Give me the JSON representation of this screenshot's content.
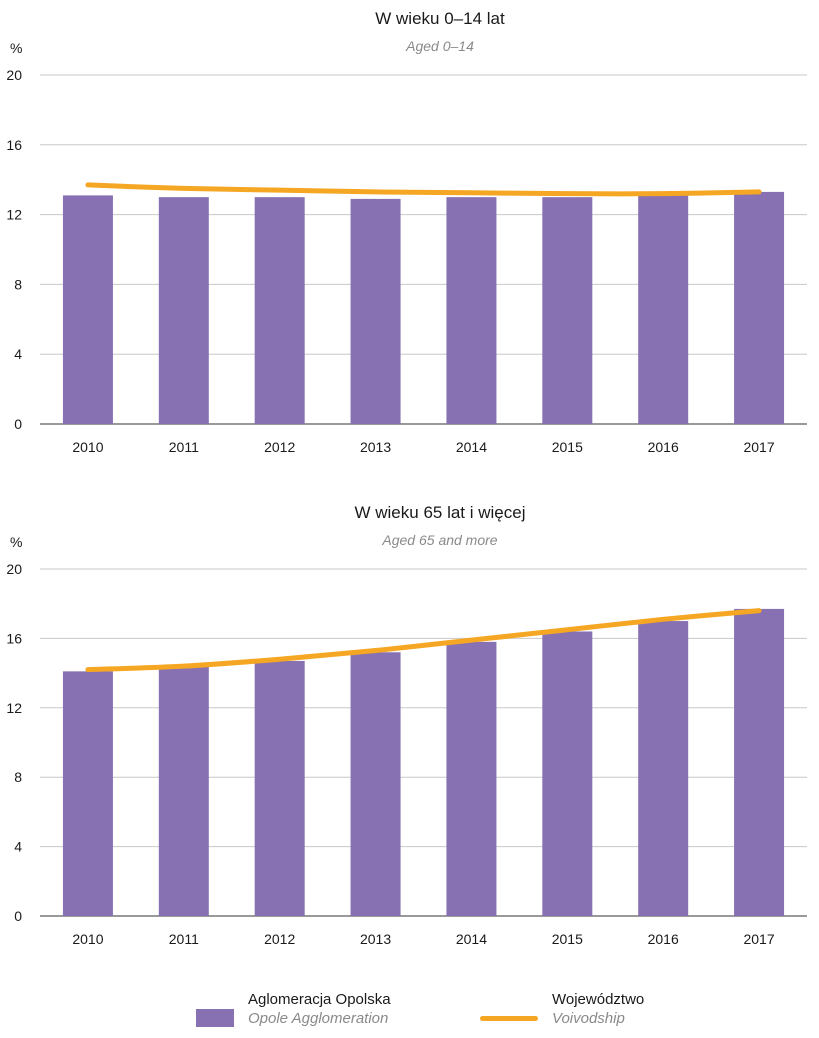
{
  "chart_data": [
    {
      "type": "bar",
      "title": "W wieku 0–14 lat",
      "subtitle": "Aged 0–14",
      "unit_label": "%",
      "categories": [
        "2010",
        "2011",
        "2012",
        "2013",
        "2014",
        "2015",
        "2016",
        "2017"
      ],
      "series": [
        {
          "name": "Aglomeracja Opolska",
          "kind": "bar",
          "values": [
            13.1,
            13.0,
            13.0,
            12.9,
            13.0,
            13.0,
            13.1,
            13.3
          ]
        },
        {
          "name": "Województwo",
          "kind": "line",
          "values": [
            13.7,
            13.5,
            13.4,
            13.3,
            13.25,
            13.2,
            13.2,
            13.3
          ]
        }
      ],
      "ylim": [
        0,
        20
      ],
      "yticks": [
        "0",
        "4",
        "8",
        "12",
        "16",
        "20"
      ],
      "grid": true
    },
    {
      "type": "bar",
      "title": "W wieku 65 lat i więcej",
      "subtitle": "Aged 65 and more",
      "unit_label": "%",
      "categories": [
        "2010",
        "2011",
        "2012",
        "2013",
        "2014",
        "2015",
        "2016",
        "2017"
      ],
      "series": [
        {
          "name": "Aglomeracja Opolska",
          "kind": "bar",
          "values": [
            14.1,
            14.4,
            14.7,
            15.2,
            15.8,
            16.4,
            17.0,
            17.7
          ]
        },
        {
          "name": "Województwo",
          "kind": "line",
          "values": [
            14.2,
            14.4,
            14.8,
            15.3,
            15.9,
            16.5,
            17.1,
            17.6
          ]
        }
      ],
      "ylim": [
        0,
        20
      ],
      "yticks": [
        "0",
        "4",
        "8",
        "12",
        "16",
        "20"
      ],
      "grid": true
    }
  ],
  "legend": {
    "placement": "bottom",
    "items": [
      {
        "label": "Aglomeracja Opolska",
        "sublabel": "Opole Agglomeration",
        "kind": "bar"
      },
      {
        "label": "Województwo",
        "sublabel": "Voivodship",
        "kind": "line"
      }
    ]
  },
  "colors": {
    "bar": "#8771b2",
    "line": "#f5a623",
    "grid": "#c8c8c8"
  }
}
